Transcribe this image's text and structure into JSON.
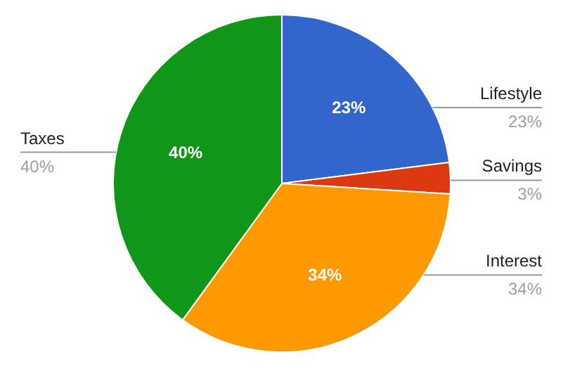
{
  "chart_data": {
    "type": "pie",
    "categories": [
      "Lifestyle",
      "Savings",
      "Interest",
      "Taxes"
    ],
    "values": [
      23,
      3,
      34,
      40
    ],
    "colors": [
      "#3366cc",
      "#dc3912",
      "#ff9900",
      "#109618"
    ],
    "value_labels": [
      "23%",
      "3%",
      "34%",
      "40%"
    ]
  }
}
